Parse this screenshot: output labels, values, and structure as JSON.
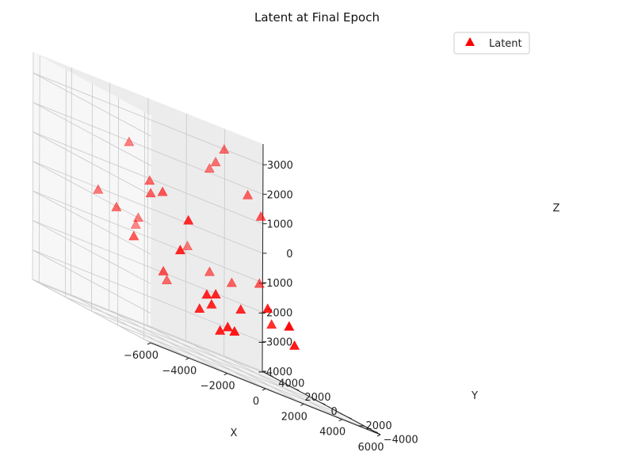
{
  "chart_data": {
    "type": "scatter",
    "projection": "3d",
    "title": "Latent at Final Epoch",
    "xlabel": "X",
    "ylabel": "Y",
    "zlabel": "Z",
    "xlim": [
      -6000,
      6000
    ],
    "ylim": [
      -4500,
      4500
    ],
    "zlim": [
      -4000,
      3700
    ],
    "x_ticks": [
      -6000,
      -4000,
      -2000,
      0,
      2000,
      4000,
      6000
    ],
    "y_ticks": [
      -4000,
      -2000,
      0,
      2000,
      4000
    ],
    "z_ticks": [
      -4000,
      -3000,
      -2000,
      -1000,
      0,
      1000,
      2000,
      3000
    ],
    "x_tick_labels": [
      "−6000",
      "−4000",
      "−2000",
      "0",
      "2000",
      "4000",
      "6000"
    ],
    "y_tick_labels": [
      "−4000",
      "−2000",
      "0",
      "2000",
      "4000"
    ],
    "z_tick_labels": [
      "−4000",
      "−3000",
      "−2000",
      "−1000",
      "0",
      "1000",
      "2000",
      "3000"
    ],
    "grid": true,
    "legend_position": "top-right",
    "marker": "triangle",
    "series": [
      {
        "name": "Latent",
        "color": "#ff0000",
        "points": [
          [
            -3340,
            3410,
            0
          ],
          [
            -2740,
            1560,
            -980
          ],
          [
            -3000,
            2510,
            -290
          ],
          [
            -1530,
            1070,
            -1740
          ],
          [
            -1380,
            3930,
            2000
          ],
          [
            -660,
            4450,
            -740
          ],
          [
            -800,
            4060,
            -450
          ],
          [
            -1220,
            2590,
            1050
          ],
          [
            -1410,
            2230,
            660
          ],
          [
            -1310,
            1470,
            910
          ],
          [
            -140,
            2830,
            -2100
          ],
          [
            1620,
            3840,
            -730
          ],
          [
            2550,
            3540,
            2210
          ],
          [
            2990,
            3070,
            3080
          ],
          [
            2650,
            3220,
            2530
          ],
          [
            3610,
            2170,
            1910
          ],
          [
            3920,
            1710,
            -900
          ],
          [
            2860,
            2270,
            -1280
          ],
          [
            3630,
            1190,
            1420
          ],
          [
            1840,
            2470,
            -1220
          ],
          [
            -2530,
            -1670,
            -630
          ],
          [
            -2050,
            -1580,
            480
          ],
          [
            -1310,
            -1920,
            -1760
          ],
          [
            -1520,
            -1680,
            -2350
          ],
          [
            -930,
            -1730,
            -2040
          ],
          [
            -770,
            -1810,
            -1640
          ],
          [
            -940,
            -2400,
            -2770
          ],
          [
            -650,
            -2560,
            -2540
          ],
          [
            -490,
            -2840,
            -2580
          ],
          [
            600,
            -1720,
            -1820
          ],
          [
            1560,
            -2370,
            -1390
          ],
          [
            2520,
            -1270,
            -1940
          ],
          [
            1660,
            -3860,
            -1610
          ],
          [
            2670,
            -2800,
            -2250
          ]
        ]
      }
    ]
  }
}
